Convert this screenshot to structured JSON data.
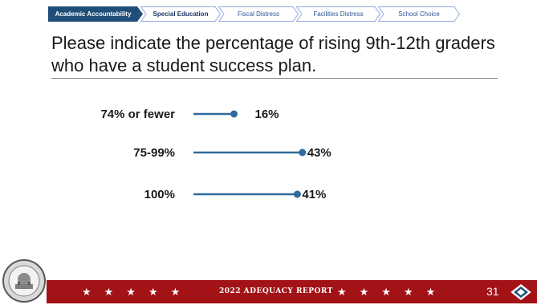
{
  "tabs": [
    {
      "label": "Academic Accountability",
      "state": "active"
    },
    {
      "label": "Special Education",
      "state": "bold"
    },
    {
      "label": "Fiscal Distress",
      "state": "plain"
    },
    {
      "label": "Facilities Distress",
      "state": "plain"
    },
    {
      "label": "School Choice",
      "state": "plain"
    }
  ],
  "title": "Please indicate the percentage of rising 9th-12th graders who have a student success plan.",
  "chart_data": {
    "type": "bar",
    "style": "lollipop",
    "categories": [
      "74% or fewer",
      "75-99%",
      "100%"
    ],
    "values": [
      16,
      43,
      41
    ],
    "value_labels": [
      "16%",
      "43%",
      "41%"
    ],
    "xlim": [
      0,
      45
    ],
    "grid": false,
    "color": "#2e6b9e"
  },
  "footer": {
    "report_label": "2022 ADEQUACY REPORT",
    "page_number": "31",
    "stars_left": "★★★★★",
    "stars_right": "★★★★★",
    "seal_icon": "state-seal-icon",
    "logo_icon": "arkansas-diamond-icon",
    "bar_color": "#a31216"
  }
}
